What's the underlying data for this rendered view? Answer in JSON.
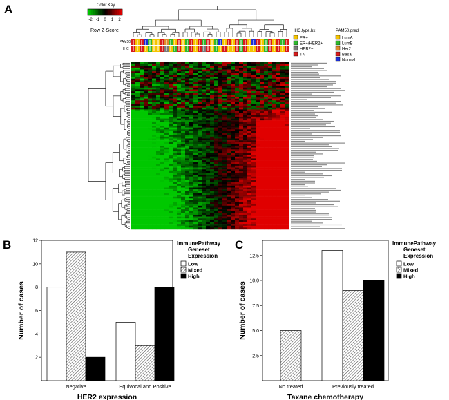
{
  "panels": {
    "a": "A",
    "b": "B",
    "c": "C"
  },
  "heatmap": {
    "color_key_title": "Color Key",
    "color_key_ticks": [
      "-2",
      "-1",
      "0",
      "1",
      "2"
    ],
    "color_key_label": "Row Z-Score",
    "row_labels": [
      "PAM50",
      "IHC"
    ],
    "ihc_legend_title": "IHC.type.bx",
    "ihc_legend": [
      {
        "label": "ER+",
        "color": "#f5c400"
      },
      {
        "label": "ER+/HER2+",
        "color": "#2db82d"
      },
      {
        "label": "HER2+",
        "color": "#7a7a7a"
      },
      {
        "label": "TN",
        "color": "#d81b1b"
      }
    ],
    "pam50_legend_title": "PAM50.pred",
    "pam50_legend": [
      {
        "label": "LumA",
        "color": "#f5c400"
      },
      {
        "label": "LumB",
        "color": "#2db82d"
      },
      {
        "label": "Her2",
        "color": "#e0892b"
      },
      {
        "label": "Basal",
        "color": "#d81b1b"
      },
      {
        "label": "Normal",
        "color": "#1c2fd6"
      }
    ],
    "colors": {
      "low": "#00c800",
      "mid": "#000000",
      "high": "#e00000"
    }
  },
  "chart_data": [
    {
      "type": "bar",
      "panel": "B",
      "categories": [
        "Negative",
        "Equivocal and Positive"
      ],
      "series": [
        {
          "name": "Low",
          "values": [
            8,
            5
          ],
          "fill": "white"
        },
        {
          "name": "Mixed",
          "values": [
            11,
            3
          ],
          "fill": "hatch"
        },
        {
          "name": "High",
          "values": [
            2,
            8
          ],
          "fill": "black"
        }
      ],
      "xlabel": "HER2 expression",
      "ylabel": "Number of cases",
      "ylim": [
        0,
        12
      ],
      "yticks": [
        "2",
        "4",
        "6",
        "8",
        "10",
        "12"
      ],
      "legend_title": [
        "ImmunePathway",
        "Geneset",
        "Expression"
      ],
      "legend_position": "right"
    },
    {
      "type": "bar",
      "panel": "C",
      "categories": [
        "No treated",
        "Previously treated"
      ],
      "series": [
        {
          "name": "Low",
          "values": [
            0,
            13
          ],
          "fill": "white"
        },
        {
          "name": "Mixed",
          "values": [
            5,
            9
          ],
          "fill": "hatch"
        },
        {
          "name": "High",
          "values": [
            0,
            10
          ],
          "fill": "black"
        }
      ],
      "xlabel": "Taxane chemotherapy",
      "ylabel": "Number of cases",
      "ylim": [
        0,
        14
      ],
      "yticks": [
        "2.5",
        "5.0",
        "7.5",
        "10.0",
        "12.5"
      ],
      "legend_title": [
        "ImmunePathway",
        "Geneset",
        "Expression"
      ],
      "legend_position": "right"
    }
  ]
}
